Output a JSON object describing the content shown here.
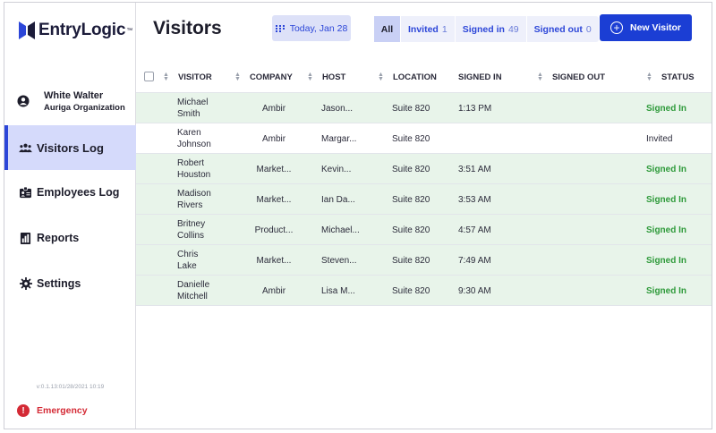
{
  "app": {
    "logo_text": "EntryLogic",
    "logo_tm": "™"
  },
  "user": {
    "name": "White Walter",
    "org": "Auriga Organization"
  },
  "nav": [
    {
      "label": "Visitors Log",
      "icon": "people-icon",
      "active": true
    },
    {
      "label": "Employees Log",
      "icon": "id-card-icon",
      "active": false
    },
    {
      "label": "Reports",
      "icon": "reports-icon",
      "active": false
    },
    {
      "label": "Settings",
      "icon": "gear-icon",
      "active": false
    }
  ],
  "version": "v:0.1.13:01/28/2021 10:19",
  "emergency": {
    "label": "Emergency",
    "icon_glyph": "!"
  },
  "header": {
    "title": "Visitors",
    "date_label": "Today, Jan 28",
    "filters": [
      {
        "label": "All",
        "count": ""
      },
      {
        "label": "Invited",
        "count": "1"
      },
      {
        "label": "Signed in",
        "count": "49"
      },
      {
        "label": "Signed out",
        "count": "0"
      }
    ],
    "new_visitor_label": "New Visitor"
  },
  "table": {
    "columns": [
      "VISITOR",
      "COMPANY",
      "HOST",
      "LOCATION",
      "SIGNED IN",
      "SIGNED OUT",
      "STATUS"
    ],
    "rows": [
      {
        "first": "Michael",
        "last": "Smith",
        "company": "Ambir",
        "host": "Jason...",
        "location": "Suite 820",
        "signed_in": "1:13 PM",
        "signed_out": "",
        "status": "Signed In"
      },
      {
        "first": "Karen",
        "last": "Johnson",
        "company": "Ambir",
        "host": "Margar...",
        "location": "Suite 820",
        "signed_in": "",
        "signed_out": "",
        "status": "Invited"
      },
      {
        "first": "Robert",
        "last": "Houston",
        "company": "Market...",
        "host": "Kevin...",
        "location": "Suite 820",
        "signed_in": "3:51 AM",
        "signed_out": "",
        "status": "Signed In"
      },
      {
        "first": "Madison",
        "last": "Rivers",
        "company": "Market...",
        "host": "Ian Da...",
        "location": "Suite 820",
        "signed_in": "3:53 AM",
        "signed_out": "",
        "status": "Signed In"
      },
      {
        "first": "Britney",
        "last": "Collins",
        "company": "Product...",
        "host": "Michael...",
        "location": "Suite 820",
        "signed_in": "4:57 AM",
        "signed_out": "",
        "status": "Signed In"
      },
      {
        "first": "Chris",
        "last": "Lake",
        "company": "Market...",
        "host": "Steven...",
        "location": "Suite 820",
        "signed_in": "7:49 AM",
        "signed_out": "",
        "status": "Signed In"
      },
      {
        "first": "Danielle",
        "last": "Mitchell",
        "company": "Ambir",
        "host": "Lisa M...",
        "location": "Suite 820",
        "signed_in": "9:30 AM",
        "signed_out": "",
        "status": "Signed In"
      }
    ]
  },
  "colors": {
    "accent": "#1b3ed4",
    "signed_in": "#2e9a3a",
    "emergency": "#d42a35",
    "row_signed_bg": "#e8f4ea",
    "nav_active_bg": "#d5dafb"
  }
}
